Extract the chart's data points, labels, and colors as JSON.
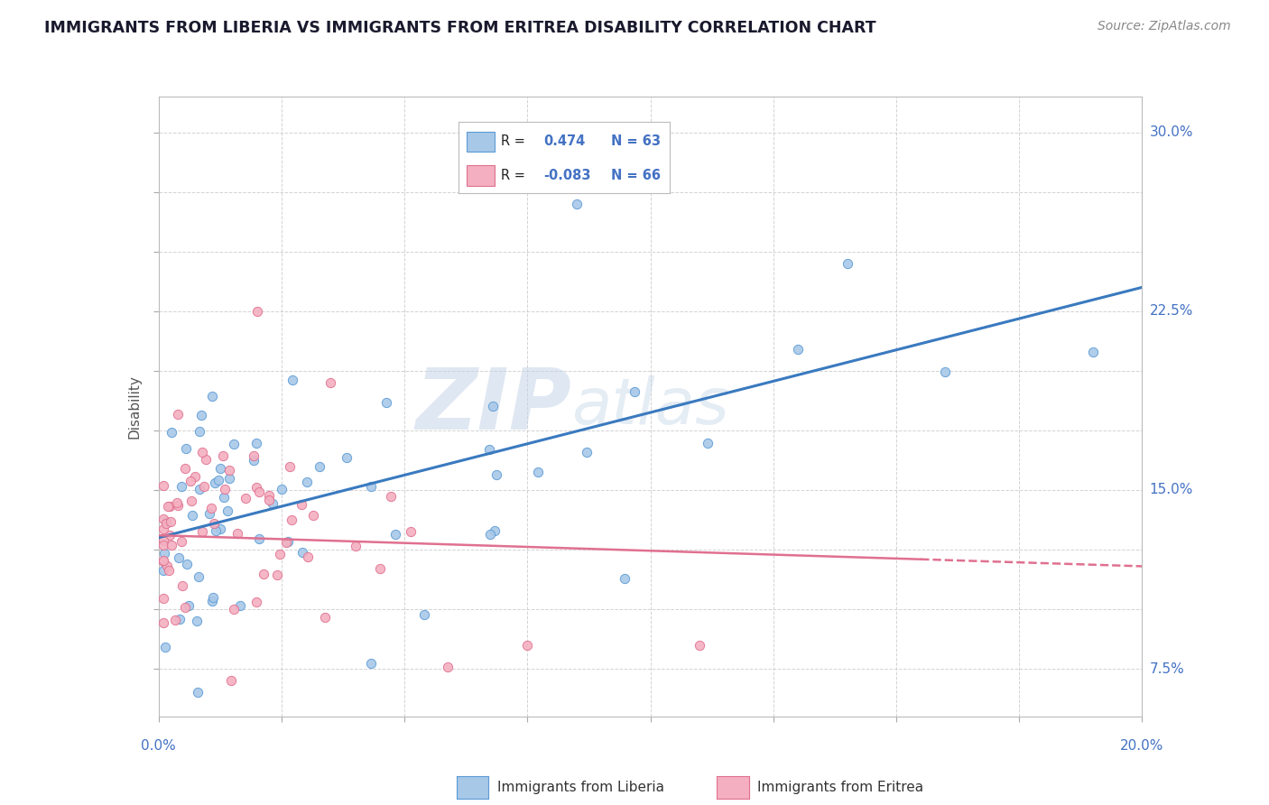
{
  "title": "IMMIGRANTS FROM LIBERIA VS IMMIGRANTS FROM ERITREA DISABILITY CORRELATION CHART",
  "source": "Source: ZipAtlas.com",
  "ylabel": "Disability",
  "xlim": [
    0.0,
    0.2
  ],
  "ylim": [
    0.055,
    0.315
  ],
  "liberia_r": 0.474,
  "liberia_n": 63,
  "eritrea_r": -0.083,
  "eritrea_n": 66,
  "liberia_color": "#a8c8e8",
  "liberia_edge": "#5b9bd5",
  "eritrea_color": "#f4b0c0",
  "eritrea_edge": "#e07090",
  "trend_liberia_color": "#3a7abf",
  "trend_eritrea_color": "#e07090",
  "background_color": "#ffffff",
  "grid_color": "#c8c8c8",
  "watermark_zip": "ZIP",
  "watermark_atlas": "atlas",
  "title_color": "#1a1a2e",
  "source_color": "#888888",
  "label_color": "#4472c4",
  "ytick_labels": [
    "7.5%",
    "15.0%",
    "22.5%",
    "30.0%"
  ],
  "ytick_values": [
    0.075,
    0.15,
    0.225,
    0.3
  ],
  "xtick_labels": [
    "0.0%",
    "20.0%"
  ],
  "xtick_values": [
    0.0,
    0.2
  ],
  "trend_lib_x0": 0.0,
  "trend_lib_y0": 0.13,
  "trend_lib_x1": 0.2,
  "trend_lib_y1": 0.235,
  "trend_eri_x0": 0.0,
  "trend_eri_y0": 0.131,
  "trend_eri_x1": 0.2,
  "trend_eri_y1": 0.118
}
